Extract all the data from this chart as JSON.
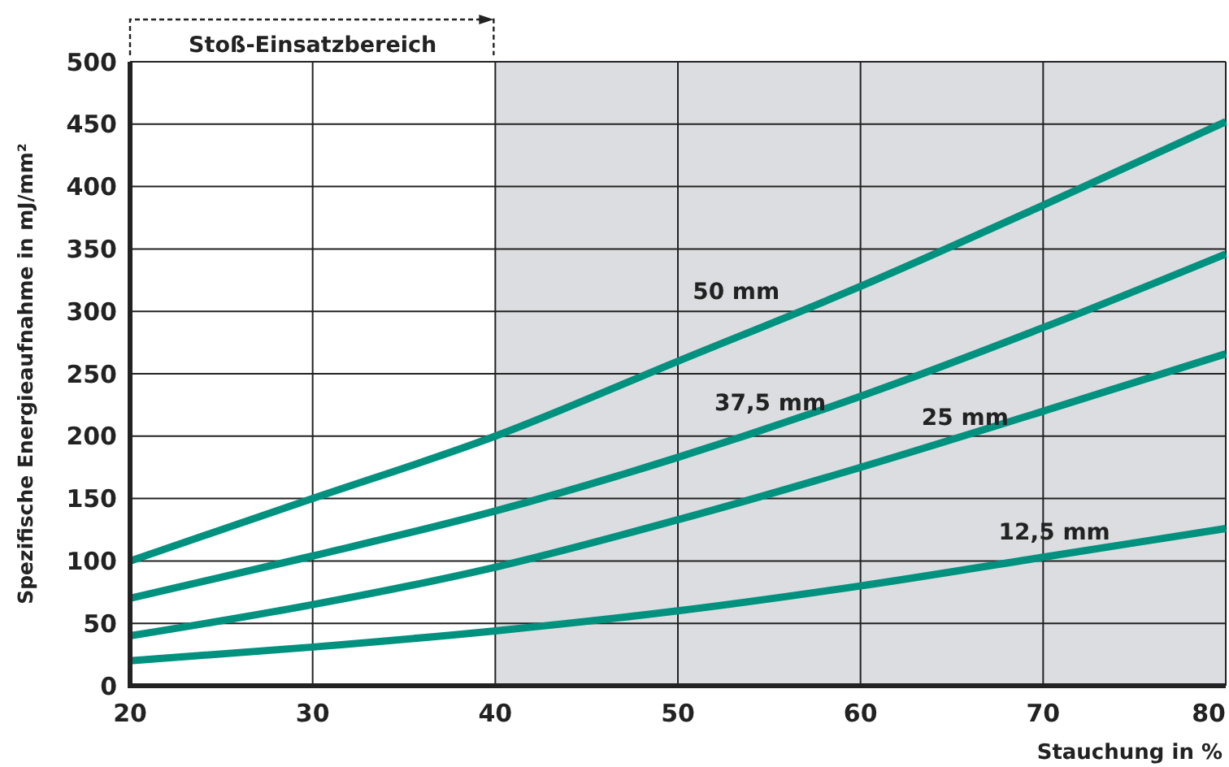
{
  "chart_data": {
    "type": "line",
    "xlabel": "Stauchung in %",
    "ylabel": "Spezifische Energieaufnahme in mJ/mm²",
    "annotations": [
      "Stoß-Einsatzbereich"
    ],
    "x": [
      20,
      30,
      40,
      50,
      60,
      70,
      80
    ],
    "series": [
      {
        "name": "50 mm",
        "color": "#00917f",
        "values": [
          100,
          150,
          200,
          260,
          320,
          385,
          452
        ]
      },
      {
        "name": "37,5 mm",
        "color": "#00917f",
        "values": [
          70,
          104,
          140,
          183,
          232,
          287,
          346
        ]
      },
      {
        "name": "25 mm",
        "color": "#00917f",
        "values": [
          40,
          65,
          95,
          133,
          175,
          220,
          266
        ]
      },
      {
        "name": "12,5 mm",
        "color": "#00917f",
        "values": [
          20,
          31,
          44,
          60,
          80,
          103,
          126
        ]
      }
    ],
    "bands": [
      {
        "axis": "x",
        "from": 40,
        "to": 80,
        "color": "#dcdde0"
      }
    ],
    "xlim": [
      20,
      80
    ],
    "xticks": [
      20,
      30,
      40,
      50,
      60,
      70,
      80
    ],
    "ylim": [
      0,
      500
    ],
    "yticks": [
      0,
      50,
      100,
      150,
      200,
      250,
      300,
      350,
      400,
      450,
      500
    ],
    "grid": true,
    "legend": false,
    "marker": "none",
    "line_style": "solid"
  }
}
